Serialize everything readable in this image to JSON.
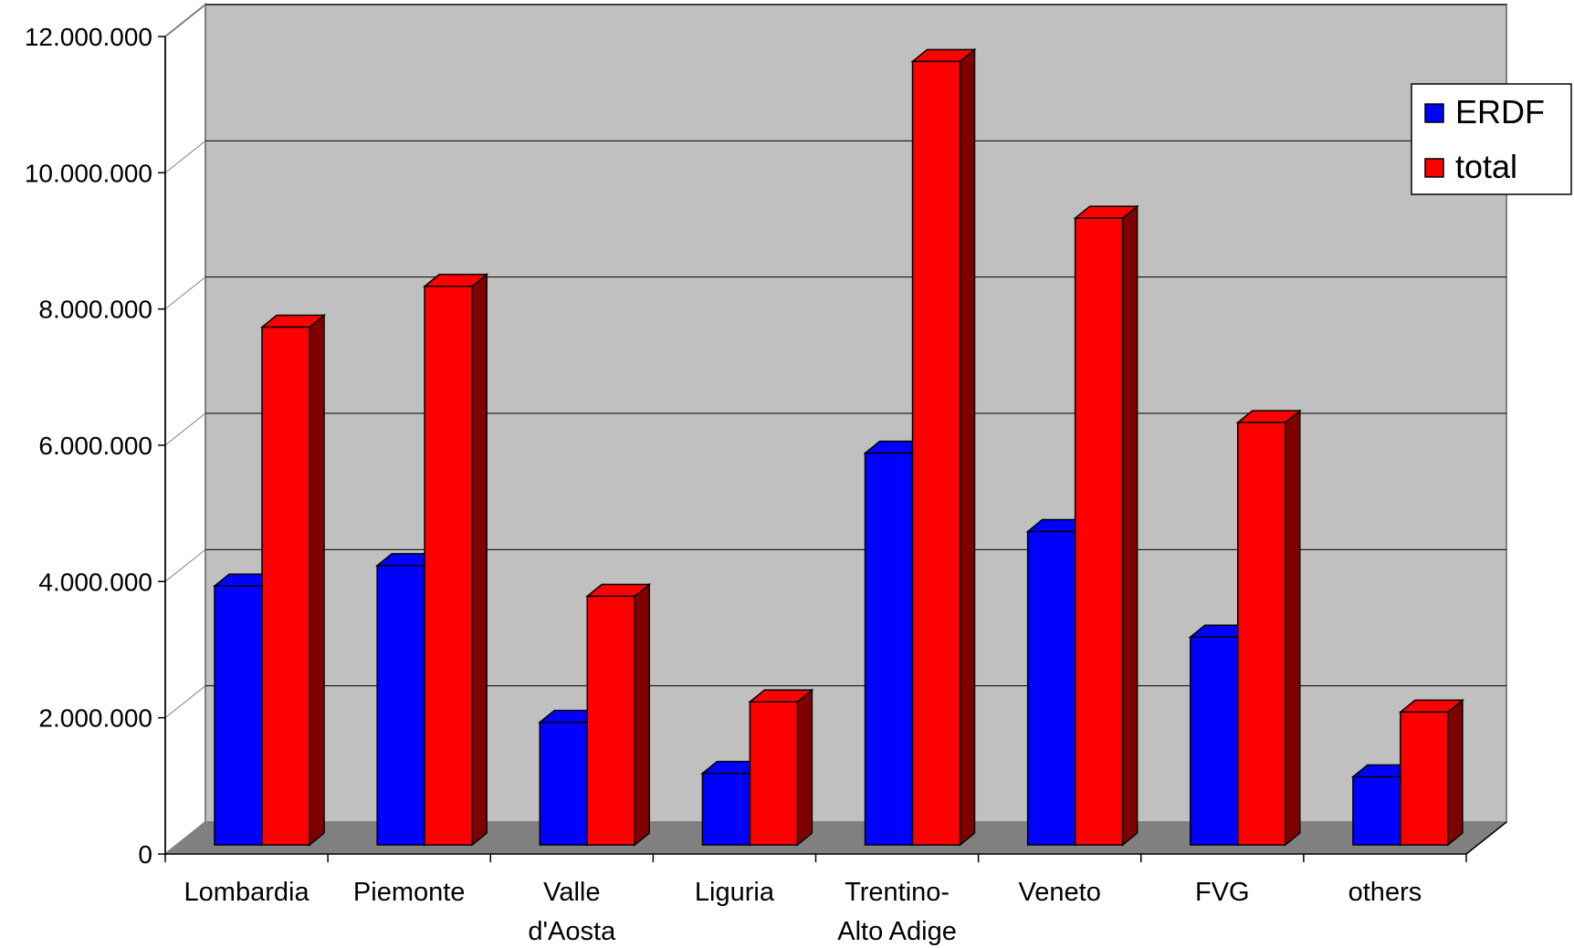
{
  "chart_data": {
    "type": "bar",
    "style": "3d-clustered-column",
    "categories": [
      [
        "Lombardia"
      ],
      [
        "Piemonte"
      ],
      [
        "Valle",
        "d'Aosta"
      ],
      [
        "Liguria"
      ],
      [
        "Trentino-",
        "Alto Adige"
      ],
      [
        "Veneto"
      ],
      [
        "FVG"
      ],
      [
        "others"
      ]
    ],
    "series": [
      {
        "name": "ERDF",
        "color": "#0000ff",
        "side_color": "#000080",
        "values": [
          3800000,
          4100000,
          1800000,
          1050000,
          5750000,
          4600000,
          3050000,
          1000000
        ]
      },
      {
        "name": "total",
        "color": "#ff0000",
        "side_color": "#800000",
        "values": [
          7600000,
          8200000,
          3650000,
          2100000,
          11500000,
          9200000,
          6200000,
          1950000
        ]
      }
    ],
    "ylim": [
      0,
      12000000
    ],
    "yticks": [
      0,
      2000000,
      4000000,
      6000000,
      8000000,
      10000000,
      12000000
    ],
    "ytick_labels": [
      "0",
      "2.000.000",
      "4.000.000",
      "6.000.000",
      "8.000.000",
      "10.000.000",
      "12.000.000"
    ],
    "title": "",
    "xlabel": "",
    "ylabel": "",
    "grid": true,
    "legend_position": "right",
    "colors": {
      "back_wall": "#c0c0c0",
      "floor": "#808080",
      "gridline": "#000000"
    }
  }
}
